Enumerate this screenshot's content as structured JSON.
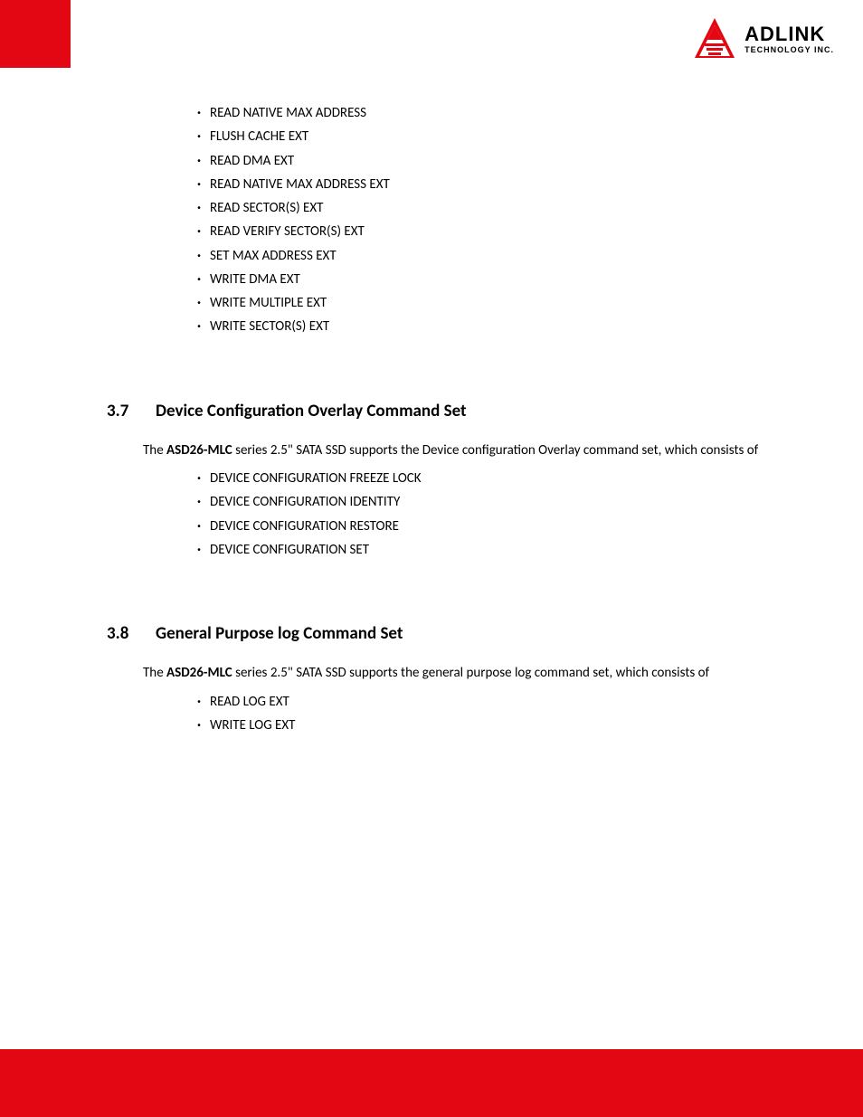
{
  "colors": {
    "brand_red": "#e30613",
    "text": "#000000",
    "background": "#ffffff"
  },
  "logo": {
    "main": "ADLINK",
    "sub": "TECHNOLOGY INC.",
    "main_fontsize": 22,
    "sub_fontsize": 9
  },
  "list1": {
    "items": [
      "READ NATIVE MAX ADDRESS",
      "FLUSH CACHE EXT",
      "READ DMA EXT",
      "READ NATIVE MAX ADDRESS EXT",
      "READ SECTOR(S) EXT",
      "READ VERIFY SECTOR(S) EXT",
      "SET MAX ADDRESS EXT",
      "WRITE DMA EXT",
      "WRITE MULTIPLE EXT",
      "WRITE SECTOR(S) EXT"
    ]
  },
  "section37": {
    "num": "3.7",
    "title": "Device Configuration Overlay Command Set",
    "para_pre": "The ",
    "para_bold": "ASD26-MLC",
    "para_post": " series 2.5\" SATA SSD supports the Device configuration Overlay command set, which consists of",
    "items": [
      "DEVICE CONFIGURATION FREEZE LOCK",
      "DEVICE CONFIGURATION IDENTITY",
      "DEVICE CONFIGURATION RESTORE",
      "DEVICE CONFIGURATION SET"
    ]
  },
  "section38": {
    "num": "3.8",
    "title": "General Purpose log Command Set",
    "para_pre": "The ",
    "para_bold": "ASD26-MLC",
    "para_post": " series 2.5\" SATA SSD supports the general purpose log command set, which consists of",
    "items": [
      "READ LOG EXT",
      "WRITE LOG EXT"
    ]
  }
}
